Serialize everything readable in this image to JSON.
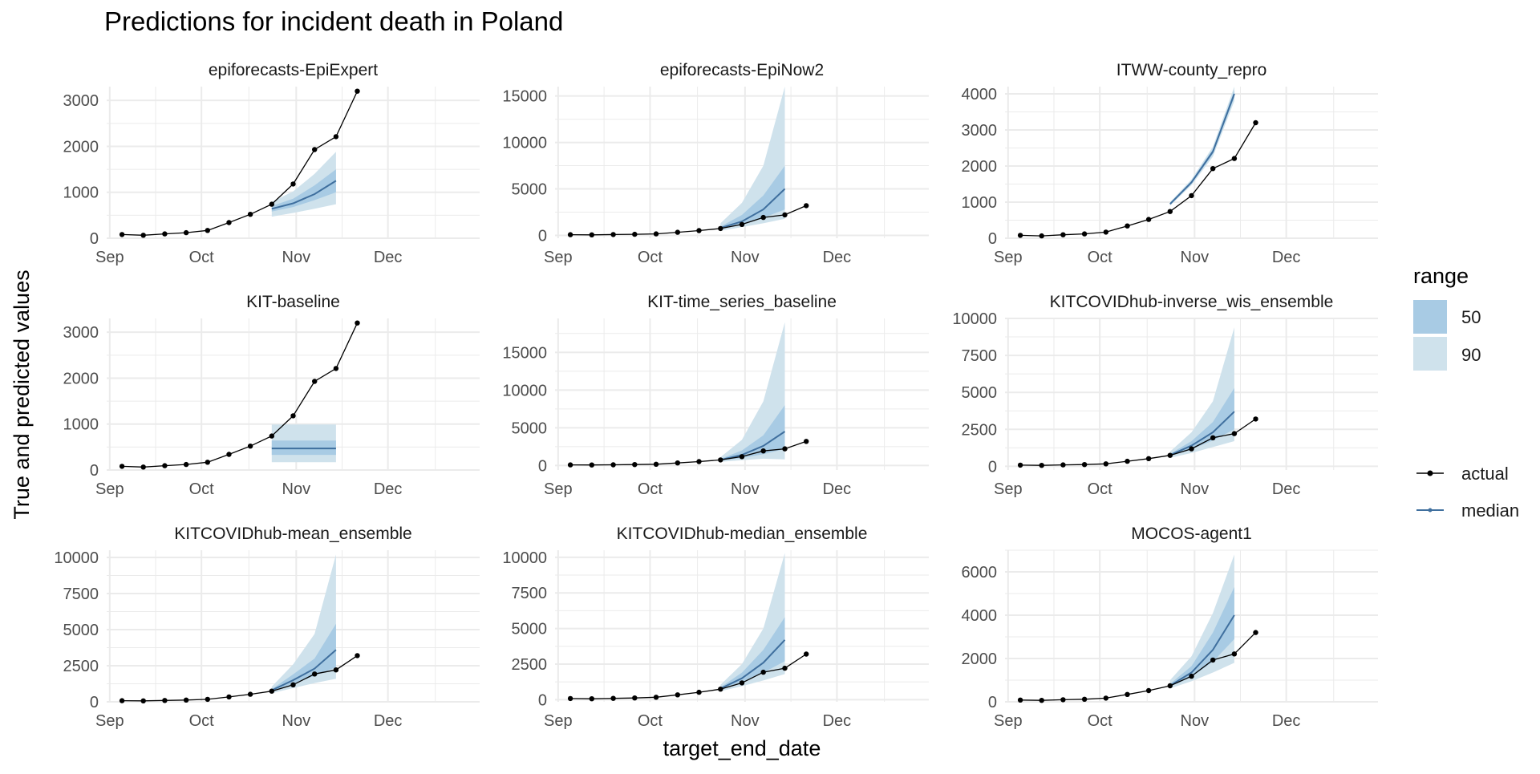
{
  "title": "Predictions for incident death in Poland",
  "xlabel": "target_end_date",
  "ylabel": "True and predicted values",
  "legend": {
    "range_title": "range",
    "range_items": [
      {
        "label": "50",
        "color": "#a8cbe4"
      },
      {
        "label": "90",
        "color": "#cfe2ec"
      }
    ],
    "line_items": [
      {
        "label": "actual",
        "color": "#000000"
      },
      {
        "label": "median",
        "color": "#3f6f9e"
      }
    ]
  },
  "colors": {
    "actual": "#000000",
    "median": "#3f6f9e",
    "band50": "#a8cbe4",
    "band90": "#cfe2ec",
    "grid": "#ebebeb",
    "text": "#4d4d4d"
  },
  "chart_data": {
    "type": "line",
    "x_axis": {
      "ticks": [
        "Sep",
        "Oct",
        "Nov",
        "Dec"
      ],
      "tick_dates": [
        "2020-09-01",
        "2020-10-01",
        "2020-11-01",
        "2020-12-01"
      ],
      "range": [
        "2020-08-31",
        "2020-12-31"
      ]
    },
    "actual": {
      "dates": [
        "2020-09-05",
        "2020-09-12",
        "2020-09-19",
        "2020-09-26",
        "2020-10-03",
        "2020-10-10",
        "2020-10-17",
        "2020-10-24",
        "2020-10-31",
        "2020-11-07",
        "2020-11-14",
        "2020-11-21"
      ],
      "values": [
        80,
        65,
        95,
        120,
        170,
        340,
        520,
        740,
        1180,
        1930,
        2210,
        3200
      ]
    },
    "forecast_dates": [
      "2020-10-24",
      "2020-10-31",
      "2020-11-07",
      "2020-11-14"
    ],
    "panels": [
      {
        "name": "epiforecasts-EpiExpert",
        "ylim": [
          0,
          3300
        ],
        "yticks": [
          0,
          1000,
          2000,
          3000
        ],
        "median": [
          640,
          760,
          960,
          1250
        ],
        "lo50": [
          580,
          680,
          830,
          1000
        ],
        "hi50": [
          700,
          860,
          1150,
          1500
        ],
        "lo90": [
          470,
          550,
          640,
          740
        ],
        "hi90": [
          790,
          1020,
          1400,
          1880
        ]
      },
      {
        "name": "epiforecasts-EpiNow2",
        "ylim": [
          -300,
          16000
        ],
        "yticks": [
          0,
          5000,
          10000,
          15000
        ],
        "median": [
          800,
          1500,
          2800,
          5000
        ],
        "lo50": [
          700,
          1150,
          1900,
          2800
        ],
        "hi50": [
          950,
          2200,
          4300,
          7500
        ],
        "lo90": [
          500,
          900,
          1300,
          1800
        ],
        "hi90": [
          1300,
          3500,
          7500,
          16000
        ]
      },
      {
        "name": "ITWW-county_repro",
        "ylim": [
          0,
          4200
        ],
        "yticks": [
          0,
          1000,
          2000,
          3000,
          4000
        ],
        "median": [
          950,
          1550,
          2400,
          4000
        ],
        "lo50": [
          930,
          1510,
          2330,
          3900
        ],
        "hi50": [
          970,
          1590,
          2470,
          4100
        ],
        "lo90": [
          900,
          1470,
          2260,
          3800
        ],
        "hi90": [
          1000,
          1630,
          2540,
          4200
        ]
      },
      {
        "name": "KIT-baseline",
        "ylim": [
          0,
          3300
        ],
        "yticks": [
          0,
          1000,
          2000,
          3000
        ],
        "median": [
          470,
          470,
          470,
          470
        ],
        "lo50": [
          330,
          330,
          330,
          330
        ],
        "hi50": [
          640,
          640,
          640,
          640
        ],
        "lo90": [
          170,
          170,
          170,
          170
        ],
        "hi90": [
          990,
          990,
          990,
          990
        ]
      },
      {
        "name": "KIT-time_series_baseline",
        "ylim": [
          -600,
          19500
        ],
        "yticks": [
          0,
          5000,
          10000,
          15000
        ],
        "median": [
          750,
          1400,
          2600,
          4500
        ],
        "lo50": [
          650,
          1000,
          1500,
          2200
        ],
        "hi50": [
          880,
          2000,
          4000,
          8000
        ],
        "lo90": [
          500,
          700,
          900,
          800
        ],
        "hi90": [
          1100,
          3400,
          8500,
          19000
        ]
      },
      {
        "name": "KITCOVIDhub-inverse_wis_ensemble",
        "ylim": [
          -250,
          10000
        ],
        "yticks": [
          0,
          2500,
          5000,
          7500,
          10000
        ],
        "median": [
          760,
          1400,
          2300,
          3700
        ],
        "lo50": [
          700,
          1150,
          1750,
          2500
        ],
        "hi50": [
          840,
          1700,
          3000,
          5300
        ],
        "lo90": [
          580,
          900,
          1300,
          1700
        ],
        "hi90": [
          1000,
          2300,
          4400,
          9400
        ]
      },
      {
        "name": "KITCOVIDhub-mean_ensemble",
        "ylim": [
          0,
          10500
        ],
        "yticks": [
          0,
          2500,
          5000,
          7500,
          10000
        ],
        "median": [
          800,
          1500,
          2300,
          3600
        ],
        "lo50": [
          720,
          1250,
          1800,
          2400
        ],
        "hi50": [
          880,
          1900,
          3000,
          5400
        ],
        "lo90": [
          600,
          950,
          1300,
          1600
        ],
        "hi90": [
          1050,
          2600,
          4700,
          10200
        ]
      },
      {
        "name": "KITCOVIDhub-median_ensemble",
        "ylim": [
          -150,
          10500
        ],
        "yticks": [
          0,
          2500,
          5000,
          7500,
          10000
        ],
        "median": [
          780,
          1500,
          2600,
          4200
        ],
        "lo50": [
          720,
          1250,
          1900,
          2700
        ],
        "hi50": [
          870,
          1900,
          3500,
          5800
        ],
        "lo90": [
          600,
          950,
          1350,
          1800
        ],
        "hi90": [
          1050,
          2500,
          5000,
          10300
        ]
      },
      {
        "name": "MOCOS-agent1",
        "ylim": [
          0,
          7000
        ],
        "yticks": [
          0,
          2000,
          4000,
          6000
        ],
        "median": [
          750,
          1350,
          2400,
          4000
        ],
        "lo50": [
          700,
          1150,
          1850,
          2900
        ],
        "hi50": [
          830,
          1650,
          3200,
          5300
        ],
        "lo90": [
          620,
          950,
          1350,
          1800
        ],
        "hi90": [
          1000,
          2100,
          4100,
          6800
        ]
      }
    ]
  }
}
